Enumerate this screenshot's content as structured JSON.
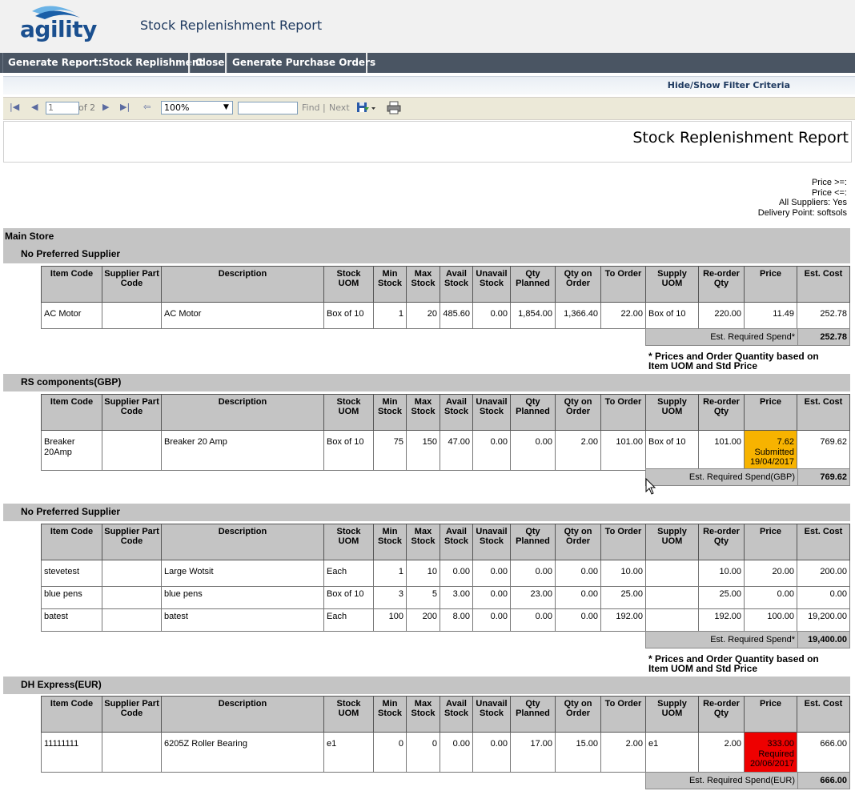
{
  "app": {
    "logo_text": "agility",
    "title": "Stock Replenishment Report"
  },
  "actions": [
    {
      "label": "Generate Report:Stock Replishment"
    },
    {
      "label": "Close"
    },
    {
      "label": "Generate Purchase Orders"
    }
  ],
  "filter": {
    "toggle_label": "Hide/Show Filter Criteria"
  },
  "viewer": {
    "page_value": "1",
    "page_of": "of 2",
    "zoom": "100%",
    "find_label": "Find",
    "separator": "|",
    "next_label": "Next"
  },
  "report": {
    "title": "Stock Replenishment Report",
    "params": [
      "Price >=:",
      "Price <=:",
      "All Suppliers: Yes",
      "Delivery Point: softsols"
    ],
    "store": "Main Store",
    "headers": [
      "Item Code",
      "Supplier Part Code",
      "Description",
      "Stock UOM",
      "Min Stock",
      "Max Stock",
      "Avail Stock",
      "Unavail Stock",
      "Qty Planned",
      "Qty on Order",
      "To Order",
      "Supply UOM",
      "Re-order Qty",
      "Price",
      "Est. Cost"
    ],
    "note": "* Prices and Order Quantity based on Item UOM and Std Price",
    "groups": [
      {
        "supplier": "No Preferred Supplier",
        "rows": [
          [
            "AC Motor",
            "",
            "AC Motor",
            "Box of 10",
            "1",
            "20",
            "485.60",
            "0.00",
            "1,854.00",
            "1,366.40",
            "22.00",
            "Box of 10",
            "220.00",
            "11.49",
            "252.78"
          ]
        ],
        "spend_label": "Est. Required Spend*",
        "spend_value": "252.78"
      },
      {
        "supplier": "RS components(GBP)",
        "rows": [
          [
            "Breaker 20Amp",
            "",
            "Breaker 20 Amp",
            "Box of 10",
            "75",
            "150",
            "47.00",
            "0.00",
            "0.00",
            "2.00",
            "101.00",
            "Box of 10",
            "101.00",
            "7.62\nSubmitted\n19/04/2017",
            "769.62"
          ]
        ],
        "spend_label": "Est. Required Spend(GBP)",
        "spend_value": "769.62"
      },
      {
        "supplier": "No Preferred Supplier",
        "rows": [
          [
            "stevetest",
            "",
            "Large Wotsit",
            "Each",
            "1",
            "10",
            "0.00",
            "0.00",
            "0.00",
            "0.00",
            "10.00",
            "",
            "10.00",
            "20.00",
            "200.00"
          ],
          [
            "blue pens",
            "",
            "blue pens",
            "Box of 10",
            "3",
            "5",
            "3.00",
            "0.00",
            "23.00",
            "0.00",
            "25.00",
            "",
            "25.00",
            "0.00",
            "0.00"
          ],
          [
            "batest",
            "",
            "batest",
            "Each",
            "100",
            "200",
            "8.00",
            "0.00",
            "0.00",
            "0.00",
            "192.00",
            "",
            "192.00",
            "100.00",
            "19,200.00"
          ]
        ],
        "spend_label": "Est. Required Spend*",
        "spend_value": "19,400.00"
      },
      {
        "supplier": "DH Express(EUR)",
        "rows": [
          [
            "11111111",
            "",
            "6205Z Roller Bearing",
            "e1",
            "0",
            "0",
            "0.00",
            "0.00",
            "17.00",
            "15.00",
            "2.00",
            "e1",
            "2.00",
            "333.00\nRequired\n20/06/2017",
            "666.00"
          ]
        ],
        "spend_label": "Est. Required Spend(EUR)",
        "spend_value": "666.00"
      }
    ]
  },
  "colors": {
    "status_submitted": "#f7b300",
    "status_required": "#ee0000",
    "action_bar": "#4a5563"
  }
}
